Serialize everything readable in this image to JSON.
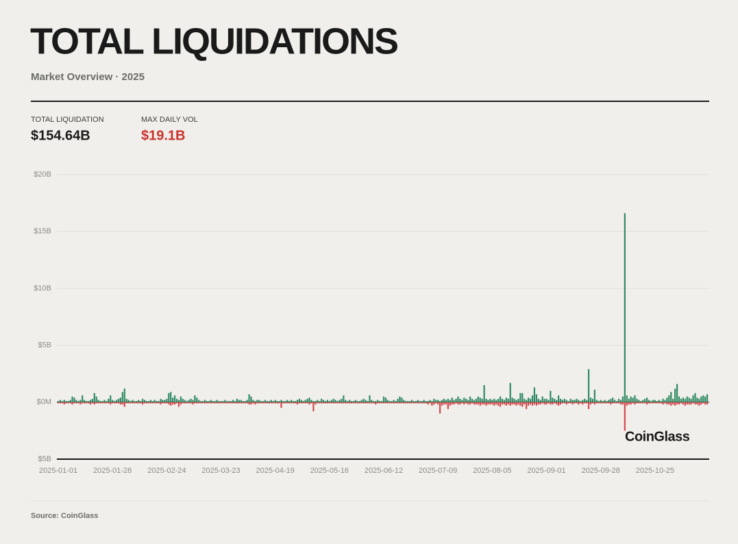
{
  "chart_data": {
    "type": "bar",
    "title": "TOTAL LIQUIDATIONS",
    "subtitle": "Market Overview · 2025",
    "stats": [
      {
        "label": "TOTAL LIQUIDATION",
        "value": "$154.64B"
      },
      {
        "label": "MAX DAILY VOL",
        "value": "$19.1B"
      }
    ],
    "watermark": "CoinGlass",
    "source": "Source: CoinGlass",
    "xlim": [
      0,
      324
    ],
    "xticks": [
      {
        "value": 0,
        "label": "2025-01-01"
      },
      {
        "value": 27,
        "label": "2025-01-28"
      },
      {
        "value": 54,
        "label": "2025-02-24"
      },
      {
        "value": 81,
        "label": "2025-03-23"
      },
      {
        "value": 108,
        "label": "2025-04-19"
      },
      {
        "value": 135,
        "label": "2025-05-16"
      },
      {
        "value": 162,
        "label": "2025-06-12"
      },
      {
        "value": 189,
        "label": "2025-07-09"
      },
      {
        "value": 216,
        "label": "2025-08-05"
      },
      {
        "value": 243,
        "label": "2025-09-01"
      },
      {
        "value": 270,
        "label": "2025-09-28"
      },
      {
        "value": 297,
        "label": "2025-10-25"
      }
    ],
    "ylim": [
      -5,
      20
    ],
    "yticks": [
      {
        "value": -5,
        "label": "$5B"
      },
      {
        "value": 0,
        "label": "$0M"
      },
      {
        "value": 5,
        "label": "$5B"
      },
      {
        "value": 10,
        "label": "$10B"
      },
      {
        "value": 15,
        "label": "$15B"
      },
      {
        "value": 20,
        "label": "$20B"
      }
    ],
    "grid": true,
    "series": [
      {
        "color": "#2f8a63",
        "values": [
          0.1,
          0.2,
          0.1,
          0.2,
          0.1,
          0.1,
          0.2,
          0.5,
          0.4,
          0.2,
          0.1,
          0.2,
          0.6,
          0.2,
          0.1,
          0.1,
          0.2,
          0.3,
          0.8,
          0.5,
          0.2,
          0.1,
          0.1,
          0.2,
          0.1,
          0.3,
          0.6,
          0.2,
          0.1,
          0.2,
          0.3,
          0.4,
          0.9,
          1.2,
          0.3,
          0.2,
          0.1,
          0.2,
          0.1,
          0.1,
          0.2,
          0.1,
          0.3,
          0.2,
          0.1,
          0.1,
          0.2,
          0.1,
          0.2,
          0.1,
          0.1,
          0.3,
          0.2,
          0.2,
          0.3,
          0.8,
          0.9,
          0.4,
          0.6,
          0.3,
          0.2,
          0.5,
          0.3,
          0.2,
          0.1,
          0.2,
          0.3,
          0.2,
          0.6,
          0.4,
          0.2,
          0.1,
          0.1,
          0.2,
          0.1,
          0.1,
          0.2,
          0.1,
          0.1,
          0.2,
          0.1,
          0.1,
          0.1,
          0.2,
          0.1,
          0.1,
          0.1,
          0.2,
          0.1,
          0.3,
          0.2,
          0.2,
          0.1,
          0.1,
          0.2,
          0.7,
          0.5,
          0.2,
          0.1,
          0.2,
          0.2,
          0.1,
          0.1,
          0.2,
          0.1,
          0.1,
          0.2,
          0.1,
          0.2,
          0.1,
          0.1,
          0.2,
          0.1,
          0.1,
          0.2,
          0.1,
          0.2,
          0.1,
          0.1,
          0.2,
          0.3,
          0.2,
          0.1,
          0.2,
          0.3,
          0.4,
          0.2,
          0.1,
          0.1,
          0.2,
          0.1,
          0.3,
          0.2,
          0.1,
          0.2,
          0.1,
          0.2,
          0.3,
          0.2,
          0.1,
          0.2,
          0.3,
          0.6,
          0.2,
          0.1,
          0.2,
          0.1,
          0.1,
          0.2,
          0.1,
          0.1,
          0.2,
          0.3,
          0.2,
          0.1,
          0.6,
          0.2,
          0.1,
          0.1,
          0.2,
          0.1,
          0.1,
          0.5,
          0.4,
          0.2,
          0.1,
          0.1,
          0.2,
          0.1,
          0.3,
          0.5,
          0.4,
          0.2,
          0.1,
          0.1,
          0.1,
          0.2,
          0.1,
          0.1,
          0.2,
          0.1,
          0.1,
          0.2,
          0.1,
          0.1,
          0.2,
          0.1,
          0.3,
          0.2,
          0.2,
          0.1,
          0.2,
          0.3,
          0.2,
          0.3,
          0.2,
          0.4,
          0.2,
          0.3,
          0.5,
          0.3,
          0.2,
          0.4,
          0.3,
          0.2,
          0.5,
          0.3,
          0.2,
          0.3,
          0.5,
          0.4,
          0.3,
          1.5,
          0.3,
          0.2,
          0.3,
          0.2,
          0.3,
          0.2,
          0.3,
          0.5,
          0.3,
          0.2,
          0.4,
          0.3,
          1.7,
          0.4,
          0.3,
          0.2,
          0.3,
          0.8,
          0.8,
          0.3,
          0.2,
          0.4,
          0.3,
          0.6,
          1.3,
          0.7,
          0.3,
          0.2,
          0.5,
          0.3,
          0.3,
          0.2,
          1.0,
          0.4,
          0.3,
          0.2,
          0.6,
          0.3,
          0.2,
          0.3,
          0.2,
          0.1,
          0.3,
          0.2,
          0.2,
          0.3,
          0.2,
          0.1,
          0.2,
          0.3,
          0.2,
          2.9,
          0.4,
          0.3,
          1.1,
          0.2,
          0.1,
          0.2,
          0.1,
          0.2,
          0.1,
          0.2,
          0.3,
          0.4,
          0.2,
          0.1,
          0.3,
          0.2,
          0.5,
          16.6,
          0.6,
          0.3,
          0.5,
          0.4,
          0.6,
          0.3,
          0.2,
          0.1,
          0.2,
          0.3,
          0.4,
          0.2,
          0.1,
          0.2,
          0.2,
          0.1,
          0.2,
          0.1,
          0.3,
          0.2,
          0.4,
          0.6,
          0.9,
          0.3,
          1.2,
          1.6,
          0.5,
          0.3,
          0.4,
          0.3,
          0.5,
          0.4,
          0.3,
          0.6,
          0.8,
          0.4,
          0.3,
          0.5,
          0.6,
          0.5,
          0.7
        ]
      },
      {
        "color": "#d4474a",
        "values": [
          -0.1,
          -0.1,
          -0.1,
          -0.2,
          -0.1,
          -0.1,
          -0.1,
          -0.2,
          -0.1,
          -0.1,
          -0.1,
          -0.2,
          -0.1,
          -0.1,
          -0.1,
          -0.1,
          -0.2,
          -0.1,
          -0.2,
          -0.1,
          -0.1,
          -0.1,
          -0.1,
          -0.1,
          -0.1,
          -0.1,
          -0.2,
          -0.1,
          -0.1,
          -0.1,
          -0.1,
          -0.2,
          -0.2,
          -0.4,
          -0.1,
          -0.1,
          -0.1,
          -0.1,
          -0.1,
          -0.1,
          -0.1,
          -0.1,
          -0.2,
          -0.1,
          -0.1,
          -0.1,
          -0.1,
          -0.1,
          -0.1,
          -0.1,
          -0.1,
          -0.2,
          -0.1,
          -0.1,
          -0.1,
          -0.2,
          -0.3,
          -0.2,
          -0.2,
          -0.1,
          -0.4,
          -0.2,
          -0.1,
          -0.1,
          -0.1,
          -0.1,
          -0.1,
          -0.2,
          -0.1,
          -0.1,
          -0.1,
          -0.1,
          -0.1,
          -0.1,
          -0.1,
          -0.1,
          -0.1,
          -0.1,
          -0.1,
          -0.1,
          -0.1,
          -0.1,
          -0.1,
          -0.1,
          -0.1,
          -0.1,
          -0.1,
          -0.1,
          -0.1,
          -0.1,
          -0.1,
          -0.1,
          -0.1,
          -0.1,
          -0.1,
          -0.2,
          -0.2,
          -0.1,
          -0.2,
          -0.1,
          -0.1,
          -0.1,
          -0.1,
          -0.1,
          -0.1,
          -0.1,
          -0.1,
          -0.1,
          -0.1,
          -0.1,
          -0.1,
          -0.5,
          -0.1,
          -0.1,
          -0.1,
          -0.1,
          -0.1,
          -0.1,
          -0.1,
          -0.2,
          -0.1,
          -0.1,
          -0.1,
          -0.1,
          -0.1,
          -0.2,
          -0.1,
          -0.8,
          -0.2,
          -0.1,
          -0.1,
          -0.1,
          -0.1,
          -0.1,
          -0.1,
          -0.1,
          -0.1,
          -0.1,
          -0.1,
          -0.1,
          -0.1,
          -0.1,
          -0.1,
          -0.1,
          -0.1,
          -0.1,
          -0.1,
          -0.1,
          -0.1,
          -0.1,
          -0.1,
          -0.1,
          -0.1,
          -0.1,
          -0.1,
          -0.1,
          -0.1,
          -0.1,
          -0.2,
          -0.1,
          -0.1,
          -0.1,
          -0.1,
          -0.1,
          -0.1,
          -0.1,
          -0.1,
          -0.1,
          -0.1,
          -0.1,
          -0.1,
          -0.1,
          -0.1,
          -0.1,
          -0.1,
          -0.1,
          -0.1,
          -0.1,
          -0.1,
          -0.1,
          -0.1,
          -0.1,
          -0.1,
          -0.1,
          -0.2,
          -0.1,
          -0.3,
          -0.2,
          -0.1,
          -0.2,
          -1.0,
          -0.3,
          -0.2,
          -0.2,
          -0.6,
          -0.3,
          -0.2,
          -0.2,
          -0.1,
          -0.2,
          -0.2,
          -0.1,
          -0.2,
          -0.1,
          -0.2,
          -0.2,
          -0.1,
          -0.2,
          -0.2,
          -0.2,
          -0.3,
          -0.2,
          -0.2,
          -0.3,
          -0.2,
          -0.2,
          -0.2,
          -0.3,
          -0.2,
          -0.3,
          -0.4,
          -0.2,
          -0.2,
          -0.3,
          -0.2,
          -0.3,
          -0.2,
          -0.2,
          -0.3,
          -0.2,
          -0.3,
          -0.4,
          -0.2,
          -0.6,
          -0.3,
          -0.2,
          -0.3,
          -0.2,
          -0.3,
          -0.2,
          -0.2,
          -0.1,
          -0.2,
          -0.2,
          -0.1,
          -0.2,
          -0.2,
          -0.1,
          -0.2,
          -0.3,
          -0.2,
          -0.1,
          -0.1,
          -0.2,
          -0.1,
          -0.1,
          -0.2,
          -0.1,
          -0.1,
          -0.2,
          -0.1,
          -0.2,
          -0.1,
          -0.1,
          -0.6,
          -0.2,
          -0.1,
          -0.2,
          -0.1,
          -0.1,
          -0.1,
          -0.1,
          -0.1,
          -0.1,
          -0.1,
          -0.2,
          -0.1,
          -0.1,
          -0.1,
          -0.1,
          -0.2,
          -0.2,
          -2.5,
          -0.3,
          -0.2,
          -0.2,
          -0.1,
          -0.2,
          -0.1,
          -0.1,
          -0.1,
          -0.1,
          -0.1,
          -0.2,
          -0.1,
          -0.1,
          -0.1,
          -0.1,
          -0.1,
          -0.1,
          -0.1,
          -0.2,
          -0.1,
          -0.2,
          -0.2,
          -0.3,
          -0.2,
          -0.3,
          -0.2,
          -0.2,
          -0.1,
          -0.2,
          -0.3,
          -0.2,
          -0.2,
          -0.2,
          -0.1,
          -0.2,
          -0.2,
          -0.3,
          -0.2,
          -0.1,
          -0.2,
          -0.2
        ]
      }
    ]
  }
}
